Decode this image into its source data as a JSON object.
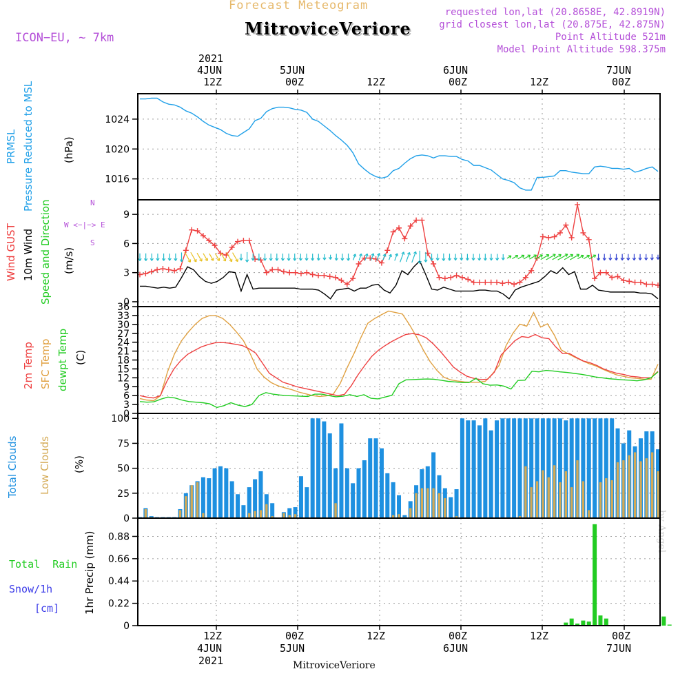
{
  "header": {
    "product_title": "Forecast Meteogram",
    "station": "MitroviceVeriore",
    "model": "ICON−EU, ~ 7km",
    "requested": "requested lon,lat (20.8658E, 42.8919N)",
    "closest": "grid closest lon,lat (20.875E, 42.875N)",
    "point_alt": "Point Altitude 521m",
    "model_alt": "Model Point Altitude 598.375m"
  },
  "time_axis": {
    "year": "2021",
    "labels": [
      {
        "top": "4JUN",
        "bot": "12Z"
      },
      {
        "top": "5JUN",
        "bot": "00Z"
      },
      {
        "top": "",
        "bot": "12Z"
      },
      {
        "top": "6JUN",
        "bot": "00Z"
      },
      {
        "top": "",
        "bot": "12Z"
      },
      {
        "top": "7JUN",
        "bot": "00Z"
      }
    ],
    "bottom_station": "MitroviceVeriore",
    "credit": "by Angel"
  },
  "panels": {
    "pressure": {
      "l1": "PRMSL",
      "l2": "Pressure Reduced to MSL",
      "unit": "(hPa)"
    },
    "wind": {
      "l1": "Wind GUST",
      "l2": "10m Wind",
      "l3": "Speed and Direction",
      "unit": "(m/s)",
      "compass_n": "N",
      "compass_s": "S",
      "compass_we": "W <−|−> E"
    },
    "temp": {
      "l1": "2m Temp",
      "l2": "SFC Temp",
      "l3": "dewpt Temp",
      "unit": "(C)"
    },
    "clouds": {
      "l1": "Total Clouds",
      "l2": "Low Clouds",
      "unit": "(%)"
    },
    "precip": {
      "l1": "Total  Rain",
      "l2": "Snow/1h",
      "l3": "[cm]",
      "unit": "1hr Precip (mm)"
    }
  },
  "colors": {
    "pressure": "#1e9fe8",
    "gust": "#ee4040",
    "wind10": "#000000",
    "temp2m": "#ee4040",
    "sfc": "#e0a040",
    "dew": "#22cc22",
    "total_cloud": "#1e90e0",
    "low_cloud": "#d4aa55",
    "rain": "#22cc22",
    "purple": "#b44fd8"
  },
  "chart_data": [
    {
      "type": "line",
      "name": "pressure",
      "title": "PRMSL Pressure Reduced to MSL",
      "ylabel": "hPa",
      "ylim": [
        1013.2,
        1027.4
      ],
      "yticks": [
        1016,
        1020,
        1024
      ],
      "series": [
        {
          "name": "PRMSL",
          "values": [
            1026.7,
            1026.7,
            1026.8,
            1026.8,
            1026.3,
            1026.0,
            1025.9,
            1025.6,
            1025.1,
            1024.8,
            1024.3,
            1023.7,
            1023.2,
            1022.9,
            1022.6,
            1022.1,
            1021.8,
            1021.7,
            1022.2,
            1022.7,
            1023.8,
            1024.1,
            1025.0,
            1025.4,
            1025.6,
            1025.6,
            1025.5,
            1025.3,
            1025.2,
            1024.9,
            1024.0,
            1023.7,
            1023.1,
            1022.5,
            1021.8,
            1021.2,
            1020.5,
            1019.5,
            1018.0,
            1017.3,
            1016.7,
            1016.3,
            1016.1,
            1016.3,
            1017.1,
            1017.4,
            1018.1,
            1018.7,
            1019.1,
            1019.2,
            1019.1,
            1018.8,
            1019.1,
            1019.1,
            1019.0,
            1019.0,
            1018.6,
            1018.4,
            1017.8,
            1017.8,
            1017.5,
            1017.2,
            1016.6,
            1016.0,
            1015.8,
            1015.5,
            1014.8,
            1014.5,
            1014.5,
            1016.2,
            1016.2,
            1016.3,
            1016.4,
            1017.1,
            1017.1,
            1016.9,
            1016.8,
            1016.7,
            1016.7,
            1017.6,
            1017.7,
            1017.6,
            1017.4,
            1017.4,
            1017.3,
            1017.4,
            1016.9,
            1017.1,
            1017.4,
            1017.6,
            1017.0
          ]
        }
      ]
    },
    {
      "type": "line",
      "name": "wind",
      "title": "Wind GUST / 10m Wind Speed and Direction",
      "ylabel": "m/s",
      "ylim": [
        -0.5,
        10.5
      ],
      "yticks": [
        0,
        3,
        6,
        9
      ],
      "series": [
        {
          "name": "Wind GUST",
          "values": [
            2.8,
            2.9,
            3.1,
            3.3,
            3.4,
            3.3,
            3.2,
            3.4,
            5.3,
            7.4,
            7.3,
            6.8,
            6.3,
            5.8,
            5.0,
            4.8,
            5.6,
            6.2,
            6.3,
            6.3,
            4.4,
            4.3,
            3.0,
            3.3,
            3.3,
            3.1,
            3.0,
            3.0,
            2.9,
            3.0,
            2.8,
            2.7,
            2.7,
            2.6,
            2.5,
            2.2,
            1.8,
            2.4,
            3.9,
            4.5,
            4.5,
            4.4,
            4.0,
            5.3,
            7.2,
            7.6,
            6.5,
            7.8,
            8.4,
            8.4,
            5.0,
            3.9,
            2.5,
            2.4,
            2.5,
            2.7,
            2.5,
            2.3,
            2.0,
            2.0,
            2.0,
            2.0,
            2.0,
            1.9,
            2.0,
            1.8,
            2.0,
            2.5,
            3.2,
            4.5,
            6.7,
            6.6,
            6.7,
            7.1,
            7.9,
            6.6,
            10.0,
            7.1,
            6.4,
            2.4,
            3.0,
            3.0,
            2.5,
            2.6,
            2.2,
            2.1,
            2.0,
            2.0,
            1.8,
            1.8,
            1.7
          ]
        },
        {
          "name": "10m Wind",
          "values": [
            1.6,
            1.6,
            1.5,
            1.4,
            1.5,
            1.4,
            1.5,
            2.5,
            3.6,
            3.3,
            2.6,
            2.1,
            1.9,
            2.1,
            2.5,
            3.1,
            3.0,
            1.1,
            2.8,
            1.3,
            1.4,
            1.4,
            1.4,
            1.4,
            1.4,
            1.4,
            1.4,
            1.3,
            1.3,
            1.3,
            1.2,
            0.8,
            0.3,
            1.2,
            1.3,
            1.4,
            1.1,
            1.4,
            1.4,
            1.7,
            1.8,
            1.2,
            0.9,
            1.7,
            3.2,
            2.8,
            3.6,
            4.2,
            2.8,
            1.3,
            1.2,
            1.5,
            1.3,
            1.1,
            1.1,
            1.1,
            1.1,
            1.2,
            1.2,
            1.1,
            1.1,
            0.8,
            0.3,
            1.2,
            1.5,
            1.7,
            1.9,
            2.1,
            2.6,
            3.2,
            2.9,
            3.5,
            2.8,
            3.1,
            1.3,
            1.3,
            1.7,
            1.2,
            1.1,
            1.0,
            1.0,
            1.0,
            1.0,
            1.0,
            0.9,
            0.9,
            0.8,
            0.3
          ]
        }
      ]
    },
    {
      "type": "line",
      "name": "temperature",
      "title": "2m Temp / SFC Temp / dewpt Temp",
      "ylabel": "C",
      "ylim": [
        0,
        36
      ],
      "yticks": [
        0,
        3,
        6,
        9,
        12,
        15,
        18,
        21,
        24,
        27,
        30,
        33,
        36
      ],
      "series": [
        {
          "name": "2m Temp",
          "values": [
            6.0,
            5.5,
            5.2,
            6.0,
            11.0,
            15.0,
            17.8,
            19.9,
            21.2,
            22.4,
            23.2,
            23.8,
            23.9,
            23.7,
            23.3,
            22.9,
            21.8,
            20.3,
            16.9,
            13.5,
            12.0,
            10.5,
            9.8,
            9.0,
            8.5,
            8.0,
            7.5,
            7.0,
            6.5,
            6.0,
            6.4,
            9.3,
            13.0,
            16.2,
            19.2,
            21.3,
            22.9,
            24.3,
            25.5,
            26.6,
            26.9,
            26.5,
            25.5,
            23.5,
            21.1,
            18.4,
            15.6,
            13.9,
            12.5,
            11.8,
            11.4,
            11.5,
            13.9,
            19.7,
            22.1,
            24.5,
            25.9,
            25.6,
            26.6,
            25.5,
            25.2,
            22.4,
            20.2,
            20.2,
            18.9,
            17.7,
            17.1,
            16.2,
            15.0,
            14.2,
            13.5,
            13.1,
            12.5,
            12.3,
            12.0,
            12.0,
            14.2
          ]
        },
        {
          "name": "SFC Temp",
          "values": [
            5.0,
            4.5,
            4.3,
            6.0,
            14.0,
            20.0,
            24.4,
            27.4,
            30.0,
            32.0,
            32.9,
            33.0,
            32.0,
            30.0,
            27.4,
            24.5,
            20.0,
            14.8,
            12.2,
            10.4,
            9.3,
            8.6,
            8.0,
            7.2,
            6.6,
            6.0,
            5.7,
            5.9,
            6.5,
            10.1,
            15.4,
            20.2,
            25.6,
            30.4,
            32.0,
            33.3,
            34.5,
            34.0,
            33.5,
            30.0,
            26.0,
            21.5,
            17.5,
            14.5,
            12.2,
            11.3,
            10.9,
            10.6,
            10.5,
            10.5,
            10.8,
            13.2,
            16.2,
            22.8,
            27.0,
            30.1,
            29.4,
            34.0,
            29.1,
            30.2,
            26.4,
            21.4,
            20.1,
            18.9,
            17.8,
            16.8,
            16.0,
            14.9,
            13.9,
            13.0,
            12.5,
            12.0,
            11.8,
            11.5,
            11.5,
            16.6
          ]
        },
        {
          "name": "dewpt Temp",
          "values": [
            4.0,
            3.8,
            3.9,
            4.8,
            5.5,
            5.2,
            4.5,
            4.0,
            3.8,
            3.6,
            3.2,
            2.0,
            2.6,
            3.6,
            2.8,
            2.3,
            3.0,
            6.0,
            7.0,
            6.5,
            6.2,
            6.0,
            5.9,
            5.8,
            5.7,
            6.5,
            6.5,
            6.0,
            5.6,
            5.8,
            6.3,
            5.7,
            6.3,
            5.1,
            4.9,
            5.5,
            6.1,
            10.0,
            11.3,
            11.4,
            11.5,
            11.6,
            11.5,
            11.2,
            10.8,
            10.6,
            10.4,
            10.4,
            11.8,
            10.0,
            9.5,
            9.6,
            9.2,
            8.2,
            11.1,
            11.2,
            14.2,
            14.0,
            14.5,
            14.3,
            14.0,
            13.8,
            13.5,
            13.2,
            12.8,
            12.3,
            12.0,
            11.7,
            11.5,
            11.3,
            11.2,
            11.0,
            11.3,
            12.0,
            14.0
          ]
        }
      ]
    },
    {
      "type": "bar",
      "name": "clouds",
      "title": "Total Clouds / Low Clouds",
      "ylabel": "%",
      "ylim": [
        0,
        105
      ],
      "yticks": [
        0,
        25,
        50,
        75,
        100
      ],
      "series": [
        {
          "name": "Total Clouds",
          "values": [
            1,
            10,
            2,
            1,
            1,
            1,
            1,
            9,
            25,
            33,
            37,
            41,
            40,
            50,
            52,
            50,
            37,
            24,
            13,
            31,
            39,
            47,
            24,
            15,
            0,
            6,
            10,
            11,
            42,
            31,
            100,
            100,
            97,
            85,
            50,
            95,
            50,
            35,
            50,
            58,
            80,
            80,
            70,
            45,
            36,
            23,
            3,
            17,
            33,
            49,
            52,
            66,
            43,
            30,
            21,
            29,
            100,
            98,
            98,
            93,
            100,
            88,
            98,
            100,
            100,
            100,
            100,
            100,
            100,
            100,
            100,
            100,
            100,
            100,
            98,
            100,
            100,
            100,
            100,
            100,
            100,
            100,
            100,
            90,
            75,
            88,
            72,
            80,
            87,
            87,
            69
          ]
        },
        {
          "name": "Low Clouds",
          "values": [
            0,
            9,
            1,
            0,
            0,
            0,
            0,
            8,
            22,
            33,
            36,
            5,
            0,
            0,
            0,
            0,
            0,
            0,
            0,
            5,
            7,
            8,
            14,
            2,
            0,
            5,
            3,
            4,
            0,
            0,
            0,
            0,
            0,
            0,
            15,
            0,
            0,
            0,
            0,
            0,
            0,
            0,
            0,
            0,
            3,
            4,
            1,
            10,
            25,
            30,
            30,
            30,
            25,
            20,
            0,
            2,
            0,
            0,
            0,
            0,
            0,
            0,
            0,
            0,
            0,
            0,
            2,
            52,
            31,
            37,
            48,
            41,
            53,
            36,
            47,
            31,
            58,
            37,
            8,
            0,
            36,
            40,
            38,
            56,
            58,
            63,
            66,
            57,
            60,
            66,
            47
          ]
        }
      ]
    },
    {
      "type": "bar",
      "name": "precipitation",
      "title": "1hr Precip",
      "ylabel": "mm",
      "ylim": [
        0,
        1.06
      ],
      "yticks": [
        0,
        0.22,
        0.44,
        0.66,
        0.88
      ],
      "series": [
        {
          "name": "Total Rain",
          "values": [
            0,
            0,
            0,
            0,
            0,
            0,
            0,
            0,
            0,
            0,
            0,
            0,
            0,
            0,
            0,
            0,
            0,
            0,
            0,
            0,
            0,
            0,
            0,
            0,
            0,
            0,
            0,
            0,
            0,
            0,
            0,
            0,
            0,
            0,
            0,
            0,
            0,
            0,
            0,
            0,
            0,
            0,
            0,
            0,
            0,
            0,
            0,
            0,
            0,
            0,
            0,
            0,
            0,
            0,
            0,
            0,
            0,
            0,
            0,
            0,
            0,
            0,
            0,
            0,
            0,
            0,
            0,
            0,
            0,
            0,
            0,
            0,
            0,
            0,
            0.03,
            0.07,
            0.02,
            0.05,
            0.04,
            1.0,
            0.1,
            0.07,
            0,
            0,
            0,
            0,
            0,
            0,
            0,
            0,
            0,
            0.09,
            0.01
          ]
        }
      ]
    }
  ]
}
